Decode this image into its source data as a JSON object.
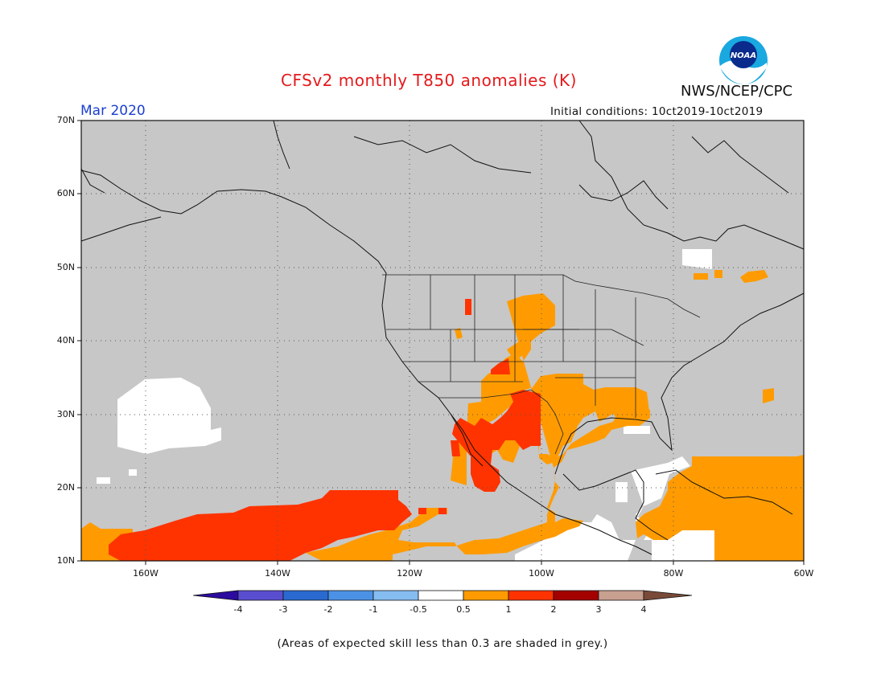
{
  "header": {
    "title": "CFSv2 monthly T850 anomalies (K)",
    "org": "NWS/NCEP/CPC",
    "month": "Mar 2020",
    "initial_conditions": "Initial conditions: 10ct2019-10ct2019"
  },
  "map": {
    "lat_labels": [
      "70N",
      "60N",
      "50N",
      "40N",
      "30N",
      "20N",
      "10N"
    ],
    "lon_labels": [
      "160W",
      "140W",
      "120W",
      "100W",
      "80W",
      "60W"
    ],
    "lon_range": [
      -171,
      -60
    ],
    "lat_range": [
      10,
      70
    ],
    "background_color": "#c7c7c7",
    "features": [
      "white-skill-patches",
      "orange-warm-anomalies",
      "red-strong-warm-anomalies",
      "coastlines",
      "state-borders",
      "dotted-gridlines"
    ]
  },
  "colorbar": {
    "ticks": [
      "-4",
      "-3",
      "-2",
      "-1",
      "-0.5",
      "0.5",
      "1",
      "2",
      "3",
      "4"
    ],
    "colors": [
      "#2b0c9e",
      "#5a4ed0",
      "#2a6ad0",
      "#4b92e6",
      "#86bdf0",
      "#ffffff",
      "#ff9b00",
      "#ff3300",
      "#a40000",
      "#c8a090",
      "#7a4a38"
    ]
  },
  "note": "(Areas of expected skill less than 0.3 are shaded in grey.)",
  "logo": {
    "icon": "noaa-logo",
    "text": "NOAA"
  }
}
